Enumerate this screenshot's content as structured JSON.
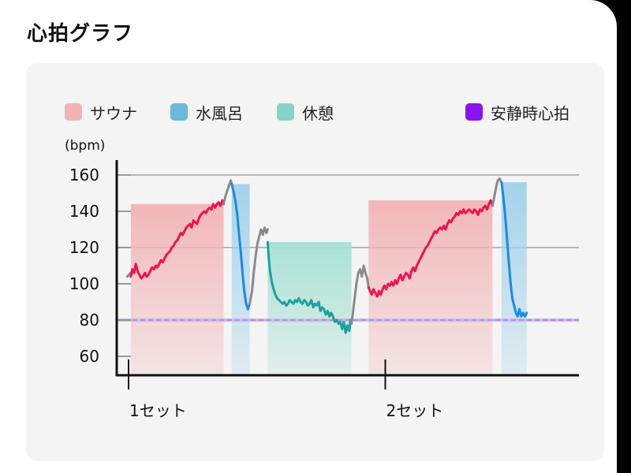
{
  "title": "心拍グラフ",
  "legend": [
    {
      "label": "サウナ",
      "color": "#f2b3b5"
    },
    {
      "label": "水風呂",
      "color": "#6ab9dc"
    },
    {
      "label": "休憩",
      "color": "#86d4c6"
    },
    {
      "label": "安静時心拍",
      "color": "#8b12f2"
    }
  ],
  "chart_data": {
    "type": "area",
    "ylabel": "(bpm)",
    "ylim": [
      52,
      163
    ],
    "yticks": [
      60,
      80,
      100,
      120,
      140,
      160
    ],
    "xlim": [
      0,
      100
    ],
    "set_labels": [
      {
        "label": "1セット",
        "x": 0
      },
      {
        "label": "2セット",
        "x": 57
      }
    ],
    "resting_hr": 80,
    "colors": {
      "sauna_line": "#f0124f",
      "cold_line": "#1a8ae6",
      "rest_line": "#1aa39c",
      "transition_line": "#8a8a8a",
      "sauna_fill": "#f2b3b5",
      "cold_fill": "#9fd0ea",
      "rest_fill": "#a6e0d3",
      "resting_line": "#a58bdc"
    },
    "series": [
      {
        "phase": "transition",
        "points": [
          [
            -0.3,
            104
          ],
          [
            0.5,
            106
          ],
          [
            0.5,
            104
          ]
        ]
      },
      {
        "phase": "sauna",
        "points": [
          [
            0.5,
            104
          ],
          [
            0.8,
            108
          ],
          [
            1.2,
            106
          ],
          [
            1.6,
            111
          ],
          [
            2,
            107
          ],
          [
            2.4,
            105
          ],
          [
            2.8,
            103
          ],
          [
            3.2,
            104
          ],
          [
            3.6,
            106
          ],
          [
            4,
            104
          ],
          [
            4.4,
            105
          ],
          [
            4.8,
            107
          ],
          [
            5.2,
            109
          ],
          [
            5.6,
            108
          ],
          [
            6,
            110
          ],
          [
            6.4,
            109
          ],
          [
            6.8,
            111
          ],
          [
            7.2,
            113
          ],
          [
            7.6,
            112
          ],
          [
            8,
            114
          ],
          [
            8.4,
            116
          ],
          [
            8.8,
            117
          ],
          [
            9.2,
            118
          ],
          [
            9.6,
            120
          ],
          [
            10,
            121
          ],
          [
            10.4,
            123
          ],
          [
            10.8,
            124
          ],
          [
            11.2,
            126
          ],
          [
            11.6,
            128
          ],
          [
            12,
            127
          ],
          [
            12.4,
            129
          ],
          [
            12.8,
            131
          ],
          [
            13.2,
            132
          ],
          [
            13.6,
            133
          ],
          [
            14,
            131
          ],
          [
            14.4,
            135
          ],
          [
            14.8,
            134
          ],
          [
            15.2,
            133
          ],
          [
            15.6,
            136
          ],
          [
            16,
            138
          ],
          [
            16.4,
            139
          ],
          [
            16.8,
            140
          ],
          [
            17.2,
            139
          ],
          [
            17.6,
            141
          ],
          [
            18,
            142
          ],
          [
            18.4,
            141
          ],
          [
            18.8,
            144
          ],
          [
            19.2,
            142
          ],
          [
            19.6,
            144
          ],
          [
            20,
            145
          ],
          [
            20.4,
            143
          ],
          [
            20.8,
            146
          ],
          [
            21.1,
            144
          ]
        ]
      },
      {
        "phase": "transition",
        "points": [
          [
            21.1,
            144
          ],
          [
            21.6,
            149
          ],
          [
            22,
            152
          ],
          [
            22.4,
            155
          ],
          [
            22.7,
            157
          ],
          [
            22.9,
            155
          ]
        ]
      },
      {
        "phase": "cold",
        "points": [
          [
            22.9,
            155
          ],
          [
            23.3,
            151
          ],
          [
            23.7,
            146
          ],
          [
            24.1,
            139
          ],
          [
            24.5,
            128
          ],
          [
            24.9,
            118
          ],
          [
            25.3,
            106
          ],
          [
            25.7,
            96
          ],
          [
            26.1,
            89
          ],
          [
            26.5,
            86
          ],
          [
            26.9,
            89
          ]
        ]
      },
      {
        "phase": "transition",
        "points": [
          [
            26.9,
            89
          ],
          [
            27.4,
            96
          ],
          [
            27.8,
            106
          ],
          [
            28.2,
            115
          ],
          [
            28.6,
            122
          ],
          [
            29,
            126
          ],
          [
            29.4,
            130
          ],
          [
            29.8,
            127
          ],
          [
            30.2,
            131
          ],
          [
            30.6,
            128
          ],
          [
            30.9,
            130
          ]
        ]
      },
      {
        "phase": "rest",
        "points": [
          [
            30.9,
            123
          ],
          [
            31.1,
            115
          ],
          [
            31.4,
            107
          ],
          [
            31.8,
            101
          ],
          [
            32.2,
            97
          ],
          [
            32.6,
            94
          ],
          [
            33,
            92
          ],
          [
            33.4,
            91
          ],
          [
            33.8,
            90
          ],
          [
            34.2,
            89
          ],
          [
            34.6,
            90
          ],
          [
            35,
            88
          ],
          [
            35.4,
            89
          ],
          [
            35.8,
            91
          ],
          [
            36.2,
            90
          ],
          [
            36.6,
            89
          ],
          [
            37,
            91
          ],
          [
            37.4,
            90
          ],
          [
            37.8,
            92
          ],
          [
            38.2,
            90
          ],
          [
            38.6,
            89
          ],
          [
            39,
            91
          ],
          [
            39.4,
            90
          ],
          [
            39.8,
            88
          ],
          [
            40.2,
            89
          ],
          [
            40.6,
            91
          ],
          [
            41,
            87
          ],
          [
            41.4,
            89
          ],
          [
            41.8,
            88
          ],
          [
            42.2,
            90
          ],
          [
            42.6,
            85
          ],
          [
            43,
            87
          ],
          [
            43.4,
            86
          ],
          [
            43.8,
            83
          ],
          [
            44.2,
            85
          ],
          [
            44.6,
            82
          ],
          [
            45,
            84
          ],
          [
            45.4,
            82
          ],
          [
            45.8,
            79
          ],
          [
            46.2,
            80
          ],
          [
            46.6,
            78
          ],
          [
            47,
            79
          ],
          [
            47.4,
            75
          ],
          [
            47.8,
            79
          ],
          [
            48.2,
            73
          ],
          [
            48.6,
            77
          ],
          [
            49,
            74
          ],
          [
            49.3,
            80
          ],
          [
            49.5,
            78
          ]
        ]
      },
      {
        "phase": "transition",
        "points": [
          [
            49.5,
            78
          ],
          [
            49.8,
            84
          ],
          [
            50.2,
            92
          ],
          [
            50.6,
            100
          ],
          [
            51,
            106
          ],
          [
            51.4,
            108
          ],
          [
            51.8,
            104
          ],
          [
            52.2,
            110
          ],
          [
            52.6,
            106
          ],
          [
            53,
            103
          ],
          [
            53.3,
            98
          ]
        ]
      },
      {
        "phase": "sauna",
        "points": [
          [
            53.3,
            98
          ],
          [
            53.6,
            96
          ],
          [
            54,
            94
          ],
          [
            54.4,
            97
          ],
          [
            54.8,
            95
          ],
          [
            55.2,
            93
          ],
          [
            55.6,
            96
          ],
          [
            56,
            94
          ],
          [
            56.4,
            97
          ],
          [
            56.8,
            99
          ],
          [
            57.2,
            97
          ],
          [
            57.6,
            100
          ],
          [
            58,
            99
          ],
          [
            58.4,
            101
          ],
          [
            58.8,
            99
          ],
          [
            59.2,
            102
          ],
          [
            59.6,
            100
          ],
          [
            60,
            103
          ],
          [
            60.4,
            105
          ],
          [
            60.8,
            102
          ],
          [
            61.2,
            104
          ],
          [
            61.6,
            106
          ],
          [
            62,
            105
          ],
          [
            62.4,
            103
          ],
          [
            62.8,
            107
          ],
          [
            63.2,
            109
          ],
          [
            63.6,
            107
          ],
          [
            64,
            110
          ],
          [
            64.4,
            112
          ],
          [
            64.8,
            114
          ],
          [
            65.2,
            116
          ],
          [
            65.6,
            118
          ],
          [
            66,
            120
          ],
          [
            66.4,
            121
          ],
          [
            66.8,
            123
          ],
          [
            67.2,
            125
          ],
          [
            67.6,
            127
          ],
          [
            68,
            129
          ],
          [
            68.4,
            128
          ],
          [
            68.8,
            130
          ],
          [
            69.2,
            131
          ],
          [
            69.6,
            130
          ],
          [
            70,
            132
          ],
          [
            70.4,
            130
          ],
          [
            70.8,
            133
          ],
          [
            71.2,
            135
          ],
          [
            71.6,
            134
          ],
          [
            72,
            136
          ],
          [
            72.4,
            137
          ],
          [
            72.8,
            139
          ],
          [
            73.2,
            138
          ],
          [
            73.6,
            140
          ],
          [
            74,
            139
          ],
          [
            74.4,
            141
          ],
          [
            74.8,
            139
          ],
          [
            75.2,
            140
          ],
          [
            75.6,
            141
          ],
          [
            76,
            140
          ],
          [
            76.4,
            139
          ],
          [
            76.8,
            141
          ],
          [
            77.2,
            140
          ],
          [
            77.6,
            138
          ],
          [
            78,
            141
          ],
          [
            78.4,
            140
          ],
          [
            78.8,
            142
          ],
          [
            79.2,
            143
          ],
          [
            79.6,
            141
          ],
          [
            80,
            144
          ],
          [
            80.4,
            146
          ],
          [
            80.8,
            143
          ]
        ]
      },
      {
        "phase": "transition",
        "points": [
          [
            80.8,
            143
          ],
          [
            81.2,
            148
          ],
          [
            81.6,
            153
          ],
          [
            82,
            157
          ],
          [
            82.4,
            158
          ],
          [
            82.8,
            156
          ]
        ]
      },
      {
        "phase": "cold",
        "points": [
          [
            82.8,
            156
          ],
          [
            83.2,
            148
          ],
          [
            83.6,
            138
          ],
          [
            84,
            126
          ],
          [
            84.4,
            113
          ],
          [
            84.8,
            101
          ],
          [
            85.2,
            92
          ],
          [
            85.6,
            88
          ],
          [
            86,
            84
          ],
          [
            86.4,
            82
          ],
          [
            86.8,
            86
          ],
          [
            87.2,
            82
          ],
          [
            87.6,
            84
          ],
          [
            88,
            82
          ],
          [
            88.4,
            84
          ]
        ]
      }
    ],
    "bands": [
      {
        "phase": "sauna",
        "start": 0.5,
        "end": 21.1,
        "top": 144
      },
      {
        "phase": "cold",
        "start": 22.9,
        "end": 26.9,
        "top": 155
      },
      {
        "phase": "rest",
        "start": 30.9,
        "end": 49.5,
        "top": 123
      },
      {
        "phase": "sauna",
        "start": 53.3,
        "end": 80.8,
        "top": 146
      },
      {
        "phase": "cold",
        "start": 82.8,
        "end": 88.4,
        "top": 156
      }
    ]
  }
}
